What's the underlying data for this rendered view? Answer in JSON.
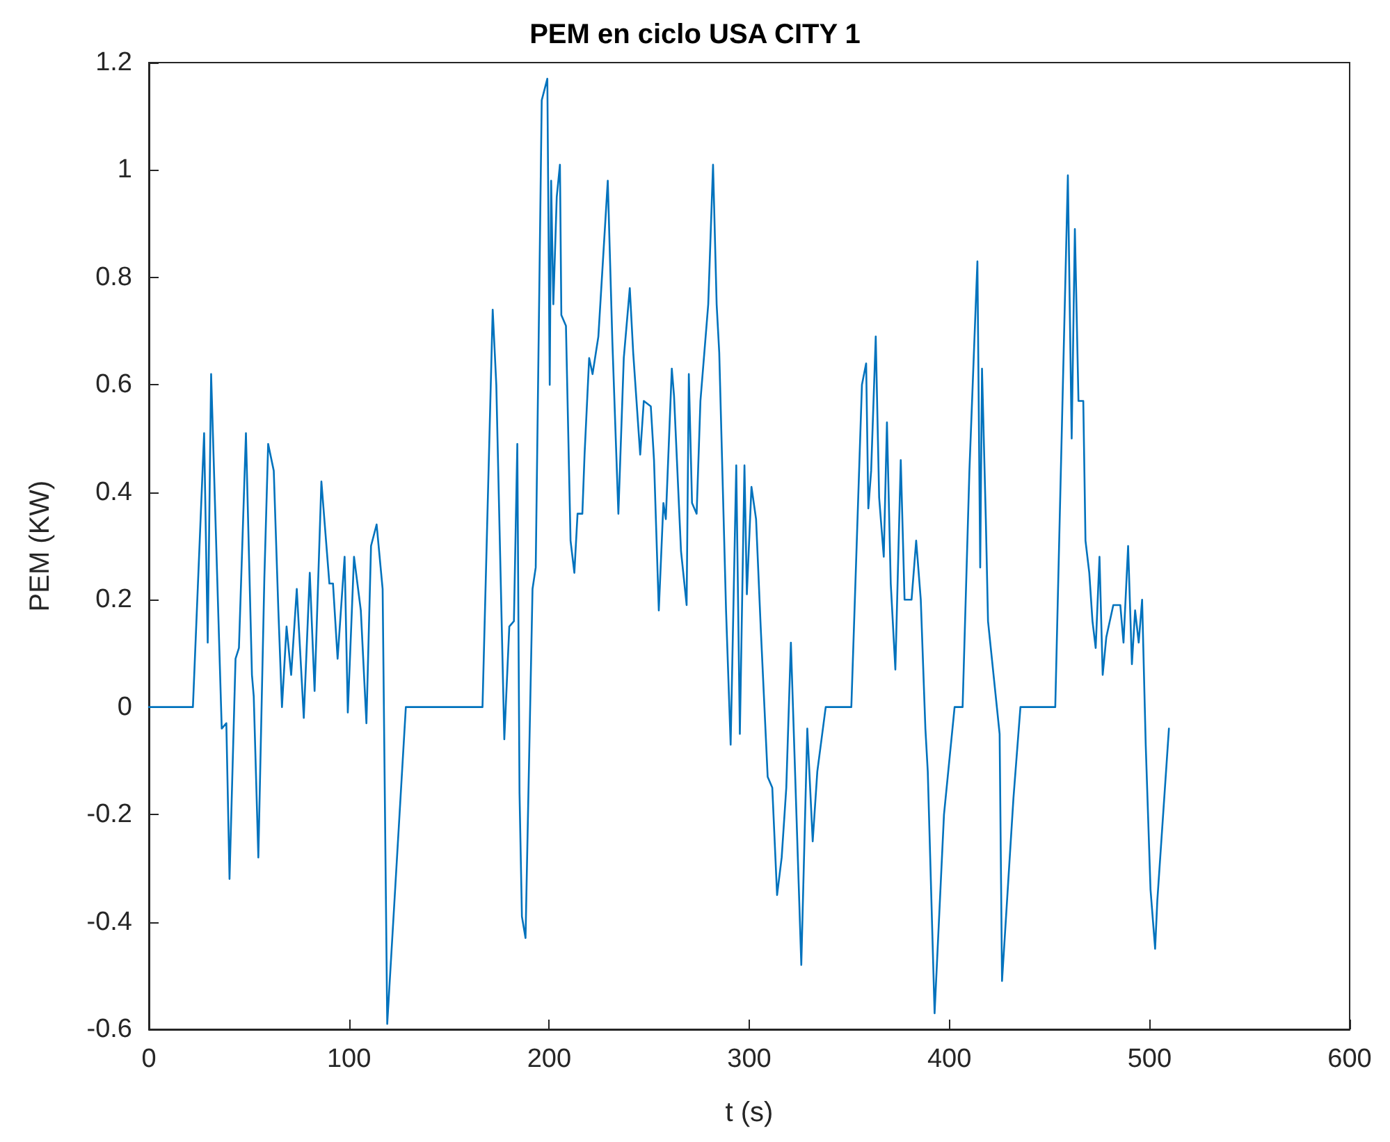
{
  "chart_data": {
    "type": "line",
    "title": "PEM en ciclo USA CITY 1",
    "xlabel": "t (s)",
    "ylabel": "PEM (KW)",
    "xlim": [
      0,
      600
    ],
    "xticks": [
      0,
      100,
      200,
      300,
      400,
      500,
      600
    ],
    "ylim": [
      -0.6,
      1.2
    ],
    "yticks": [
      -0.6,
      -0.4,
      -0.2,
      0,
      0.2,
      0.4,
      0.6,
      0.8,
      1,
      1.2
    ],
    "marker": "none",
    "line_style": "solid",
    "series": [
      {
        "color": "#0072bd",
        "x": [
          0,
          22,
          27.6,
          29.4,
          31.1,
          36.4,
          38.7,
          40.3,
          43.3,
          45,
          48.5,
          51.5,
          52.4,
          54.7,
          57.7,
          59.6,
          62.4,
          64.7,
          66.5,
          68.8,
          71.1,
          73.9,
          77.4,
          80.4,
          82.8,
          86.2,
          90.2,
          92,
          94.3,
          97.8,
          99.4,
          102.5,
          105.9,
          108.7,
          111,
          113.8,
          116.8,
          119.1,
          128.4,
          166.7,
          171.8,
          173.6,
          177.6,
          180.1,
          182.4,
          184.1,
          185.2,
          186.4,
          188.2,
          191.7,
          193.3,
          196.3,
          199.1,
          200.3,
          201,
          202.1,
          203.8,
          205.4,
          206.1,
          208.4,
          210.7,
          212.6,
          214.2,
          216.6,
          217.7,
          220,
          221.7,
          224.6,
          229.3,
          231.6,
          234.6,
          237.3,
          240.3,
          242,
          245.5,
          247.3,
          250.8,
          252.4,
          254.8,
          257.1,
          258.3,
          261.3,
          262.4,
          265.9,
          268.7,
          269.8,
          271.4,
          273.7,
          275.6,
          279.5,
          281.9,
          283.7,
          285,
          288.4,
          290.7,
          293.5,
          295.3,
          297.6,
          298.8,
          301.1,
          303.4,
          305.7,
          309.2,
          311.5,
          313.9,
          316.2,
          318.5,
          320.8,
          326,
          329,
          331.7,
          334,
          338.2,
          351,
          356.3,
          358.4,
          359.5,
          360.9,
          363.2,
          364.9,
          367.2,
          368.8,
          370.7,
          373,
          375.7,
          377.6,
          381.1,
          383.4,
          385.7,
          388,
          389.2,
          392.6,
          397.3,
          402.6,
          406.6,
          410,
          414,
          415.4,
          416.3,
          418.2,
          419.3,
          425.1,
          426.3,
          432,
          435.5,
          452.9,
          456.9,
          459.2,
          461.1,
          462.7,
          464.5,
          466.9,
          468,
          469.9,
          471.5,
          473.1,
          475,
          476.6,
          478.4,
          481.9,
          485.4,
          487,
          489.3,
          491.2,
          492.8,
          494.6,
          496.3,
          498.1,
          500.5,
          502.8,
          503.9,
          509.7
        ],
        "values": [
          0,
          0,
          0.51,
          0.12,
          0.62,
          -0.04,
          -0.03,
          -0.32,
          0.09,
          0.11,
          0.51,
          0.06,
          0.02,
          -0.28,
          0.24,
          0.49,
          0.44,
          0.18,
          0,
          0.15,
          0.06,
          0.22,
          -0.02,
          0.25,
          0.03,
          0.42,
          0.23,
          0.23,
          0.09,
          0.28,
          -0.01,
          0.28,
          0.18,
          -0.03,
          0.3,
          0.34,
          0.22,
          -0.59,
          0,
          0,
          0.74,
          0.6,
          -0.06,
          0.15,
          0.16,
          0.49,
          -0.16,
          -0.39,
          -0.43,
          0.22,
          0.26,
          1.13,
          1.17,
          0.6,
          0.98,
          0.75,
          0.95,
          1.01,
          0.73,
          0.71,
          0.31,
          0.25,
          0.36,
          0.36,
          0.47,
          0.65,
          0.62,
          0.69,
          0.98,
          0.68,
          0.36,
          0.65,
          0.78,
          0.66,
          0.47,
          0.57,
          0.56,
          0.46,
          0.18,
          0.38,
          0.35,
          0.63,
          0.58,
          0.29,
          0.19,
          0.62,
          0.38,
          0.36,
          0.57,
          0.75,
          1.01,
          0.75,
          0.66,
          0.18,
          -0.07,
          0.45,
          -0.05,
          0.45,
          0.21,
          0.41,
          0.35,
          0.15,
          -0.13,
          -0.15,
          -0.35,
          -0.28,
          -0.15,
          0.12,
          -0.48,
          -0.04,
          -0.25,
          -0.12,
          0,
          0,
          0.6,
          0.64,
          0.37,
          0.44,
          0.69,
          0.39,
          0.28,
          0.53,
          0.23,
          0.07,
          0.46,
          0.2,
          0.2,
          0.31,
          0.2,
          -0.04,
          -0.12,
          -0.57,
          -0.2,
          0,
          0,
          0.44,
          0.83,
          0.26,
          0.63,
          0.35,
          0.16,
          -0.05,
          -0.51,
          -0.17,
          0,
          0,
          0.63,
          0.99,
          0.5,
          0.89,
          0.57,
          0.57,
          0.31,
          0.25,
          0.16,
          0.11,
          0.28,
          0.06,
          0.13,
          0.19,
          0.19,
          0.12,
          0.3,
          0.08,
          0.18,
          0.12,
          0.2,
          -0.07,
          -0.34,
          -0.45,
          -0.36,
          -0.04
        ]
      }
    ]
  }
}
